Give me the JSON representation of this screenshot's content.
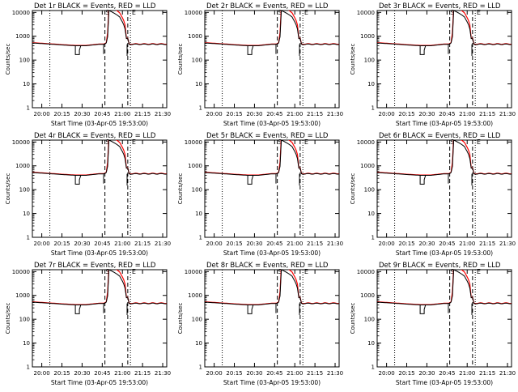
{
  "colors": {
    "events": "#000000",
    "lld": "#ff0000",
    "axes": "#000000",
    "background": "#ffffff"
  },
  "chart_data": [
    {
      "type": "line",
      "title": "Det 1r BLACK = Events, RED = LLD",
      "ylabel": "Counts/sec",
      "xlabel": "Start Time (03-Apr-05 19:53:00)",
      "x_tick_labels": [
        "20:00",
        "20:15",
        "20:30",
        "20:45",
        "21:00",
        "21:15",
        "21:30"
      ],
      "y_tick_labels": [
        "1",
        "10",
        "100",
        "1000",
        "10000"
      ],
      "ylim": [
        1,
        12000
      ],
      "ylog": true,
      "series": [
        {
          "name": "Events",
          "color": "#000000"
        },
        {
          "name": "LLD",
          "color": "#ff0000"
        }
      ],
      "annotations": [
        "S",
        "E"
      ]
    },
    {
      "type": "line",
      "title": "Det 2r BLACK = Events, RED = LLD",
      "ylabel": "Counts/sec",
      "xlabel": "Start Time (03-Apr-05 19:53:00)",
      "x_tick_labels": [
        "20:00",
        "20:15",
        "20:30",
        "20:45",
        "21:00",
        "21:15",
        "21:30"
      ],
      "y_tick_labels": [
        "1",
        "10",
        "100",
        "1000",
        "10000"
      ],
      "ylim": [
        1,
        12000
      ],
      "ylog": true,
      "series": [
        {
          "name": "Events",
          "color": "#000000"
        },
        {
          "name": "LLD",
          "color": "#ff0000"
        }
      ],
      "annotations": [
        "S",
        "E"
      ]
    },
    {
      "type": "line",
      "title": "Det 3r BLACK = Events, RED = LLD",
      "ylabel": "Counts/sec",
      "xlabel": "Start Time (03-Apr-05 19:53:00)",
      "x_tick_labels": [
        "20:00",
        "20:15",
        "20:30",
        "20:45",
        "21:00",
        "21:15",
        "21:30"
      ],
      "y_tick_labels": [
        "1",
        "10",
        "100",
        "1000",
        "10000"
      ],
      "ylim": [
        1,
        12000
      ],
      "ylog": true,
      "series": [
        {
          "name": "Events",
          "color": "#000000"
        },
        {
          "name": "LLD",
          "color": "#ff0000"
        }
      ],
      "annotations": [
        "S",
        "E"
      ]
    },
    {
      "type": "line",
      "title": "Det 4r BLACK = Events, RED = LLD",
      "ylabel": "Counts/sec",
      "xlabel": "Start Time (03-Apr-05 19:53:00)",
      "x_tick_labels": [
        "20:00",
        "20:15",
        "20:30",
        "20:45",
        "21:00",
        "21:15",
        "21:30"
      ],
      "y_tick_labels": [
        "1",
        "10",
        "100",
        "1000",
        "10000"
      ],
      "ylim": [
        1,
        12000
      ],
      "ylog": true,
      "series": [
        {
          "name": "Events",
          "color": "#000000"
        },
        {
          "name": "LLD",
          "color": "#ff0000"
        }
      ],
      "annotations": [
        "S",
        "E"
      ]
    },
    {
      "type": "line",
      "title": "Det 5r BLACK = Events, RED = LLD",
      "ylabel": "Counts/sec",
      "xlabel": "Start Time (03-Apr-05 19:53:00)",
      "x_tick_labels": [
        "20:00",
        "20:15",
        "20:30",
        "20:45",
        "21:00",
        "21:15",
        "21:30"
      ],
      "y_tick_labels": [
        "1",
        "10",
        "100",
        "1000",
        "10000"
      ],
      "ylim": [
        1,
        12000
      ],
      "ylog": true,
      "series": [
        {
          "name": "Events",
          "color": "#000000"
        },
        {
          "name": "LLD",
          "color": "#ff0000"
        }
      ],
      "annotations": [
        "S",
        "E"
      ]
    },
    {
      "type": "line",
      "title": "Det 6r BLACK = Events, RED = LLD",
      "ylabel": "Counts/sec",
      "xlabel": "Start Time (03-Apr-05 19:53:00)",
      "x_tick_labels": [
        "20:00",
        "20:15",
        "20:30",
        "20:45",
        "21:00",
        "21:15",
        "21:30"
      ],
      "y_tick_labels": [
        "1",
        "10",
        "100",
        "1000",
        "10000"
      ],
      "ylim": [
        1,
        12000
      ],
      "ylog": true,
      "series": [
        {
          "name": "Events",
          "color": "#000000"
        },
        {
          "name": "LLD",
          "color": "#ff0000"
        }
      ],
      "annotations": [
        "S",
        "E"
      ]
    },
    {
      "type": "line",
      "title": "Det 7r BLACK = Events, RED = LLD",
      "ylabel": "Counts/sec",
      "xlabel": "Start Time (03-Apr-05 19:53:00)",
      "x_tick_labels": [
        "20:00",
        "20:15",
        "20:30",
        "20:45",
        "21:00",
        "21:15",
        "21:30"
      ],
      "y_tick_labels": [
        "1",
        "10",
        "100",
        "1000",
        "10000"
      ],
      "ylim": [
        1,
        12000
      ],
      "ylog": true,
      "series": [
        {
          "name": "Events",
          "color": "#000000"
        },
        {
          "name": "LLD",
          "color": "#ff0000"
        }
      ],
      "annotations": [
        "S",
        "E"
      ]
    },
    {
      "type": "line",
      "title": "Det 8r BLACK = Events, RED = LLD",
      "ylabel": "Counts/sec",
      "xlabel": "Start Time (03-Apr-05 19:53:00)",
      "x_tick_labels": [
        "20:00",
        "20:15",
        "20:30",
        "20:45",
        "21:00",
        "21:15",
        "21:30"
      ],
      "y_tick_labels": [
        "1",
        "10",
        "100",
        "1000",
        "10000"
      ],
      "ylim": [
        1,
        12000
      ],
      "ylog": true,
      "series": [
        {
          "name": "Events",
          "color": "#000000"
        },
        {
          "name": "LLD",
          "color": "#ff0000"
        }
      ],
      "annotations": [
        "S",
        "E"
      ]
    },
    {
      "type": "line",
      "title": "Det 9r BLACK = Events, RED = LLD",
      "ylabel": "Counts/sec",
      "xlabel": "Start Time (03-Apr-05 19:53:00)",
      "x_tick_labels": [
        "20:00",
        "20:15",
        "20:30",
        "20:45",
        "21:00",
        "21:15",
        "21:30"
      ],
      "y_tick_labels": [
        "1",
        "10",
        "100",
        "1000",
        "10000"
      ],
      "ylim": [
        1,
        12000
      ],
      "ylog": true,
      "series": [
        {
          "name": "Events",
          "color": "#000000"
        },
        {
          "name": "LLD",
          "color": "#ff0000"
        }
      ],
      "annotations": [
        "S",
        "E"
      ]
    }
  ]
}
